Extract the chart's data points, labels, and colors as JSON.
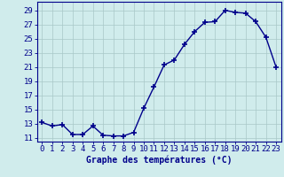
{
  "hours": [
    0,
    1,
    2,
    3,
    4,
    5,
    6,
    7,
    8,
    9,
    10,
    11,
    12,
    13,
    14,
    15,
    16,
    17,
    18,
    19,
    20,
    21,
    22,
    23
  ],
  "temperatures": [
    13.2,
    12.7,
    12.9,
    11.5,
    11.5,
    12.7,
    11.4,
    11.3,
    11.3,
    11.8,
    15.2,
    18.2,
    21.3,
    22.0,
    24.2,
    26.0,
    27.3,
    27.4,
    29.0,
    28.7,
    28.6,
    27.4,
    25.2,
    21.0
  ],
  "line_color": "#00008B",
  "marker": "+",
  "marker_size": 4,
  "marker_lw": 1.2,
  "line_width": 1.0,
  "bg_color": "#d0ecec",
  "grid_color": "#a8c8c8",
  "xlabel": "Graphe des températures (°C)",
  "ytick_labels": [
    "11",
    "13",
    "15",
    "17",
    "19",
    "21",
    "23",
    "25",
    "27",
    "29"
  ],
  "ytick_vals": [
    11,
    13,
    15,
    17,
    19,
    21,
    23,
    25,
    27,
    29
  ],
  "ylim": [
    10.5,
    30.2
  ],
  "xlim": [
    -0.5,
    23.5
  ],
  "axis_color": "#00008B",
  "tick_color": "#00008B",
  "label_fontsize": 7,
  "tick_fontsize": 6.5
}
